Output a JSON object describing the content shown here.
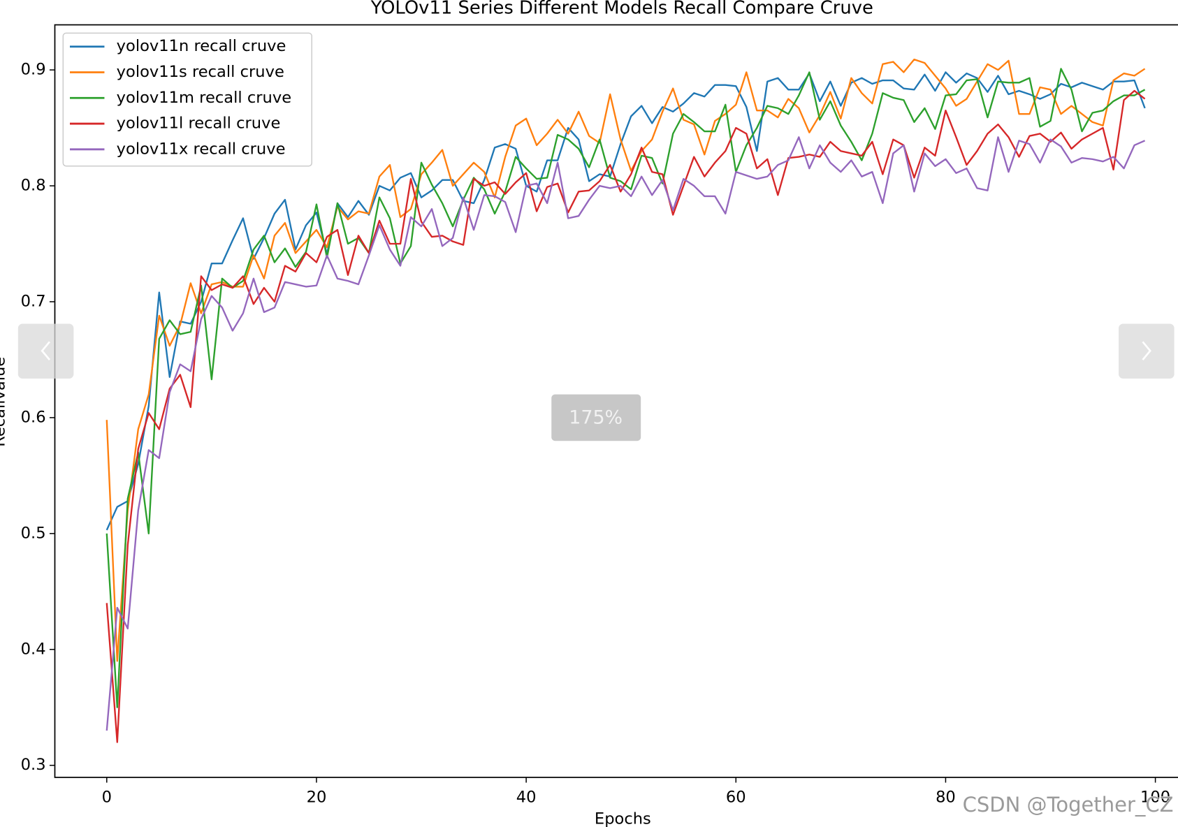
{
  "chart_data": {
    "type": "line",
    "title": "YOLOv11 Series Different Models Recall Compare Cruve",
    "xlabel": "Epochs",
    "ylabel": "Recallvalue",
    "legend": "upper left",
    "xlim": [
      -4.95,
      103.95
    ],
    "ylim": [
      0.2896,
      0.9389
    ],
    "xticks": [
      0,
      20,
      40,
      60,
      80,
      100
    ],
    "yticks": [
      0.3,
      0.4,
      0.5,
      0.6,
      0.7,
      0.8,
      0.9
    ],
    "x": [
      0,
      1,
      2,
      3,
      4,
      5,
      6,
      7,
      8,
      9,
      10,
      11,
      12,
      13,
      14,
      15,
      16,
      17,
      18,
      19,
      20,
      21,
      22,
      23,
      24,
      25,
      26,
      27,
      28,
      29,
      30,
      31,
      32,
      33,
      34,
      35,
      36,
      37,
      38,
      39,
      40,
      41,
      42,
      43,
      44,
      45,
      46,
      47,
      48,
      49,
      50,
      51,
      52,
      53,
      54,
      55,
      56,
      57,
      58,
      59,
      60,
      61,
      62,
      63,
      64,
      65,
      66,
      67,
      68,
      69,
      70,
      71,
      72,
      73,
      74,
      75,
      76,
      77,
      78,
      79,
      80,
      81,
      82,
      83,
      84,
      85,
      86,
      87,
      88,
      89,
      90,
      91,
      92,
      93,
      94,
      95,
      96,
      97,
      98,
      99
    ],
    "series": [
      {
        "name": "yolov11n recall cruve",
        "color": "#1f77b4",
        "values": [
          0.503,
          0.523,
          0.528,
          0.56,
          0.61,
          0.708,
          0.635,
          0.683,
          0.681,
          0.7,
          0.733,
          0.733,
          0.753,
          0.772,
          0.737,
          0.755,
          0.776,
          0.788,
          0.745,
          0.766,
          0.777,
          0.741,
          0.785,
          0.773,
          0.787,
          0.775,
          0.8,
          0.796,
          0.807,
          0.811,
          0.79,
          0.796,
          0.805,
          0.805,
          0.787,
          0.785,
          0.805,
          0.833,
          0.836,
          0.832,
          0.8,
          0.795,
          0.822,
          0.822,
          0.85,
          0.84,
          0.804,
          0.81,
          0.808,
          0.836,
          0.86,
          0.869,
          0.854,
          0.868,
          0.864,
          0.871,
          0.88,
          0.877,
          0.887,
          0.887,
          0.886,
          0.868,
          0.83,
          0.89,
          0.893,
          0.883,
          0.883,
          0.897,
          0.873,
          0.89,
          0.869,
          0.889,
          0.893,
          0.888,
          0.891,
          0.891,
          0.884,
          0.883,
          0.896,
          0.882,
          0.898,
          0.889,
          0.897,
          0.893,
          0.881,
          0.895,
          0.879,
          0.882,
          0.879,
          0.875,
          0.879,
          0.888,
          0.885,
          0.889,
          0.886,
          0.883,
          0.89,
          0.89,
          0.891,
          0.867
        ]
      },
      {
        "name": "yolov11s recall cruve",
        "color": "#ff7f0e",
        "values": [
          0.598,
          0.39,
          0.52,
          0.59,
          0.62,
          0.688,
          0.662,
          0.68,
          0.716,
          0.69,
          0.715,
          0.717,
          0.713,
          0.713,
          0.74,
          0.72,
          0.757,
          0.768,
          0.742,
          0.752,
          0.762,
          0.747,
          0.782,
          0.771,
          0.778,
          0.776,
          0.808,
          0.818,
          0.773,
          0.78,
          0.81,
          0.82,
          0.831,
          0.8,
          0.81,
          0.82,
          0.812,
          0.79,
          0.825,
          0.852,
          0.858,
          0.835,
          0.845,
          0.857,
          0.845,
          0.864,
          0.843,
          0.837,
          0.879,
          0.84,
          0.813,
          0.83,
          0.84,
          0.864,
          0.884,
          0.857,
          0.853,
          0.827,
          0.856,
          0.862,
          0.87,
          0.898,
          0.865,
          0.865,
          0.859,
          0.875,
          0.867,
          0.846,
          0.861,
          0.881,
          0.858,
          0.893,
          0.88,
          0.871,
          0.905,
          0.907,
          0.898,
          0.909,
          0.906,
          0.895,
          0.884,
          0.869,
          0.875,
          0.89,
          0.905,
          0.9,
          0.908,
          0.862,
          0.862,
          0.885,
          0.883,
          0.862,
          0.869,
          0.862,
          0.855,
          0.852,
          0.891,
          0.897,
          0.895,
          0.901
        ]
      },
      {
        "name": "yolov11m recall cruve",
        "color": "#2ca02c",
        "values": [
          0.5,
          0.35,
          0.53,
          0.57,
          0.5,
          0.668,
          0.684,
          0.672,
          0.674,
          0.714,
          0.633,
          0.72,
          0.712,
          0.718,
          0.745,
          0.757,
          0.734,
          0.746,
          0.73,
          0.743,
          0.784,
          0.738,
          0.785,
          0.75,
          0.755,
          0.742,
          0.79,
          0.772,
          0.733,
          0.748,
          0.82,
          0.801,
          0.785,
          0.765,
          0.788,
          0.807,
          0.797,
          0.776,
          0.795,
          0.825,
          0.815,
          0.806,
          0.807,
          0.844,
          0.84,
          0.832,
          0.816,
          0.84,
          0.807,
          0.804,
          0.797,
          0.826,
          0.824,
          0.802,
          0.845,
          0.862,
          0.855,
          0.847,
          0.847,
          0.87,
          0.812,
          0.835,
          0.85,
          0.869,
          0.867,
          0.862,
          0.878,
          0.898,
          0.857,
          0.873,
          0.852,
          0.838,
          0.822,
          0.845,
          0.88,
          0.876,
          0.874,
          0.855,
          0.867,
          0.849,
          0.878,
          0.879,
          0.891,
          0.892,
          0.859,
          0.89,
          0.889,
          0.889,
          0.893,
          0.851,
          0.856,
          0.901,
          0.883,
          0.847,
          0.863,
          0.865,
          0.873,
          0.878,
          0.878,
          0.883
        ]
      },
      {
        "name": "yolov11l recall cruve",
        "color": "#d62728",
        "values": [
          0.44,
          0.32,
          0.49,
          0.573,
          0.604,
          0.59,
          0.625,
          0.637,
          0.609,
          0.722,
          0.71,
          0.715,
          0.712,
          0.722,
          0.698,
          0.712,
          0.7,
          0.731,
          0.726,
          0.742,
          0.734,
          0.756,
          0.762,
          0.723,
          0.757,
          0.742,
          0.77,
          0.75,
          0.75,
          0.806,
          0.769,
          0.756,
          0.757,
          0.752,
          0.749,
          0.806,
          0.8,
          0.803,
          0.793,
          0.803,
          0.811,
          0.778,
          0.799,
          0.802,
          0.777,
          0.795,
          0.796,
          0.804,
          0.818,
          0.795,
          0.81,
          0.833,
          0.812,
          0.81,
          0.775,
          0.8,
          0.825,
          0.808,
          0.82,
          0.83,
          0.85,
          0.845,
          0.815,
          0.823,
          0.792,
          0.824,
          0.825,
          0.827,
          0.825,
          0.838,
          0.83,
          0.828,
          0.826,
          0.838,
          0.81,
          0.84,
          0.835,
          0.807,
          0.833,
          0.826,
          0.865,
          0.842,
          0.818,
          0.83,
          0.845,
          0.853,
          0.842,
          0.825,
          0.843,
          0.845,
          0.838,
          0.846,
          0.832,
          0.84,
          0.845,
          0.85,
          0.814,
          0.874,
          0.882,
          0.875
        ]
      },
      {
        "name": "yolov11x recall cruve",
        "color": "#9467bd",
        "values": [
          0.33,
          0.436,
          0.418,
          0.52,
          0.572,
          0.565,
          0.622,
          0.646,
          0.64,
          0.685,
          0.705,
          0.695,
          0.675,
          0.69,
          0.72,
          0.691,
          0.695,
          0.717,
          0.715,
          0.713,
          0.714,
          0.74,
          0.72,
          0.718,
          0.715,
          0.74,
          0.766,
          0.745,
          0.731,
          0.773,
          0.765,
          0.78,
          0.748,
          0.755,
          0.79,
          0.762,
          0.792,
          0.791,
          0.786,
          0.76,
          0.8,
          0.802,
          0.785,
          0.82,
          0.772,
          0.774,
          0.788,
          0.8,
          0.798,
          0.8,
          0.791,
          0.808,
          0.792,
          0.805,
          0.779,
          0.806,
          0.8,
          0.791,
          0.791,
          0.776,
          0.812,
          0.809,
          0.806,
          0.808,
          0.818,
          0.822,
          0.842,
          0.815,
          0.835,
          0.82,
          0.812,
          0.822,
          0.808,
          0.812,
          0.785,
          0.828,
          0.835,
          0.795,
          0.828,
          0.817,
          0.823,
          0.811,
          0.815,
          0.798,
          0.796,
          0.842,
          0.812,
          0.839,
          0.836,
          0.82,
          0.84,
          0.834,
          0.82,
          0.824,
          0.823,
          0.821,
          0.825,
          0.815,
          0.835,
          0.839
        ]
      }
    ]
  },
  "overlay": {
    "zoom": "175%",
    "watermark": "CSDN @Together_CZ"
  }
}
